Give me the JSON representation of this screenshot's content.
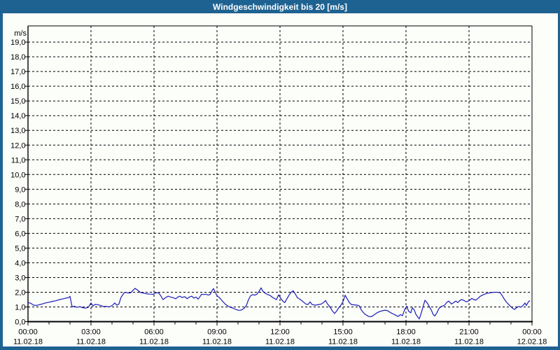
{
  "window": {
    "title": "Windgeschwindigkeit bis 20 [m/s]"
  },
  "colors": {
    "chrome_blue": "#1E6291",
    "plot_background": "#FCFEFA",
    "grid_color": "#000000",
    "line_color": "#1B1BB8",
    "title_text": "#FFFFFF",
    "axis_text": "#000000"
  },
  "chart_data": {
    "type": "line",
    "title": "Windgeschwindigkeit bis 20 [m/s]",
    "ylabel": "m/s",
    "xlabel": "",
    "ylim": [
      0,
      20.1
    ],
    "xlim_hours": [
      0,
      24
    ],
    "grid": "dashed",
    "legend": "none",
    "y_tick_step": 1.0,
    "x_major_tick_hours": 3,
    "x_minor_tick_hours": 1,
    "y_tick_labels": [
      "0,0",
      "1,0",
      "2,0",
      "3,0",
      "4,0",
      "5,0",
      "6,0",
      "7,0",
      "8,0",
      "9,0",
      "10,0",
      "11,0",
      "12,0",
      "13,0",
      "14,0",
      "15,0",
      "16,0",
      "17,0",
      "18,0",
      "19,0"
    ],
    "x_ticks": [
      {
        "time": "00:00",
        "date": "11.02.18"
      },
      {
        "time": "03:00",
        "date": "11.02.18"
      },
      {
        "time": "06:00",
        "date": "11.02.18"
      },
      {
        "time": "09:00",
        "date": "11.02.18"
      },
      {
        "time": "12:00",
        "date": "11.02.18"
      },
      {
        "time": "15:00",
        "date": "11.02.18"
      },
      {
        "time": "18:00",
        "date": "11.02.18"
      },
      {
        "time": "21:00",
        "date": "11.02.18"
      },
      {
        "time": "00:00",
        "date": "12.02.18"
      }
    ],
    "series": [
      {
        "name": "Windgeschwindigkeit",
        "unit": "m/s",
        "points": [
          [
            0,
            1.3
          ],
          [
            0.13,
            1.25
          ],
          [
            0.27,
            1.12
          ],
          [
            0.4,
            1.1
          ],
          [
            0.53,
            1.15
          ],
          [
            0.67,
            1.2
          ],
          [
            0.83,
            1.27
          ],
          [
            1,
            1.32
          ],
          [
            1.17,
            1.38
          ],
          [
            1.33,
            1.42
          ],
          [
            1.5,
            1.5
          ],
          [
            1.67,
            1.55
          ],
          [
            1.8,
            1.6
          ],
          [
            1.93,
            1.63
          ],
          [
            2,
            1.72
          ],
          [
            2.1,
            1
          ],
          [
            2.2,
            1.05
          ],
          [
            2.33,
            0.97
          ],
          [
            2.47,
            1.02
          ],
          [
            2.6,
            0.95
          ],
          [
            2.73,
            0.92
          ],
          [
            2.87,
            0.97
          ],
          [
            3,
            1.27
          ],
          [
            3.1,
            1.07
          ],
          [
            3.2,
            1.17
          ],
          [
            3.33,
            1.15
          ],
          [
            3.47,
            1.1
          ],
          [
            3.6,
            1.02
          ],
          [
            3.73,
            1.04
          ],
          [
            3.87,
            1
          ],
          [
            4.03,
            1.12
          ],
          [
            4.13,
            1.27
          ],
          [
            4.23,
            1.12
          ],
          [
            4.33,
            1.2
          ],
          [
            4.43,
            1.65
          ],
          [
            4.57,
            1.95
          ],
          [
            4.67,
            2
          ],
          [
            4.77,
            1.94
          ],
          [
            4.9,
            1.97
          ],
          [
            5,
            2.13
          ],
          [
            5.1,
            2.26
          ],
          [
            5.23,
            2.13
          ],
          [
            5.33,
            2
          ],
          [
            5.47,
            1.95
          ],
          [
            5.63,
            1.9
          ],
          [
            5.8,
            1.87
          ],
          [
            5.97,
            1.86
          ],
          [
            6.1,
            1.97
          ],
          [
            6.23,
            1.94
          ],
          [
            6.33,
            1.74
          ],
          [
            6.43,
            1.5
          ],
          [
            6.57,
            1.65
          ],
          [
            6.67,
            1.73
          ],
          [
            6.8,
            1.67
          ],
          [
            6.93,
            1.62
          ],
          [
            7.03,
            1.55
          ],
          [
            7.13,
            1.67
          ],
          [
            7.23,
            1.73
          ],
          [
            7.33,
            1.64
          ],
          [
            7.47,
            1.7
          ],
          [
            7.57,
            1.56
          ],
          [
            7.67,
            1.66
          ],
          [
            7.8,
            1.73
          ],
          [
            7.9,
            1.6
          ],
          [
            8,
            1.67
          ],
          [
            8.1,
            1.53
          ],
          [
            8.2,
            1.72
          ],
          [
            8.27,
            1.87
          ],
          [
            8.37,
            1.84
          ],
          [
            8.47,
            1.87
          ],
          [
            8.57,
            1.81
          ],
          [
            8.67,
            1.84
          ],
          [
            8.77,
            2.12
          ],
          [
            8.83,
            2.25
          ],
          [
            8.9,
            2.05
          ],
          [
            9,
            1.76
          ],
          [
            9.1,
            1.65
          ],
          [
            9.2,
            1.5
          ],
          [
            9.3,
            1.33
          ],
          [
            9.4,
            1.18
          ],
          [
            9.5,
            1.08
          ],
          [
            9.6,
            1
          ],
          [
            9.7,
            0.95
          ],
          [
            9.8,
            0.9
          ],
          [
            9.9,
            0.83
          ],
          [
            10,
            0.78
          ],
          [
            10.1,
            0.77
          ],
          [
            10.2,
            0.82
          ],
          [
            10.3,
            0.92
          ],
          [
            10.4,
            1.1
          ],
          [
            10.5,
            1.5
          ],
          [
            10.6,
            1.76
          ],
          [
            10.7,
            1.84
          ],
          [
            10.8,
            1.8
          ],
          [
            10.9,
            1.87
          ],
          [
            11,
            2.05
          ],
          [
            11.1,
            2.3
          ],
          [
            11.17,
            2.1
          ],
          [
            11.27,
            1.95
          ],
          [
            11.4,
            1.85
          ],
          [
            11.53,
            1.78
          ],
          [
            11.67,
            1.62
          ],
          [
            11.83,
            1.5
          ],
          [
            11.93,
            1.82
          ],
          [
            12.03,
            1.6
          ],
          [
            12.13,
            1.4
          ],
          [
            12.23,
            1.3
          ],
          [
            12.33,
            1.56
          ],
          [
            12.43,
            1.8
          ],
          [
            12.53,
            2
          ],
          [
            12.63,
            2.1
          ],
          [
            12.73,
            1.88
          ],
          [
            12.83,
            1.62
          ],
          [
            12.93,
            1.54
          ],
          [
            13.03,
            1.44
          ],
          [
            13.13,
            1.32
          ],
          [
            13.23,
            1.2
          ],
          [
            13.33,
            1.16
          ],
          [
            13.43,
            1.34
          ],
          [
            13.53,
            1.16
          ],
          [
            13.67,
            1.12
          ],
          [
            13.83,
            1.16
          ],
          [
            13.97,
            1.2
          ],
          [
            14.07,
            1.3
          ],
          [
            14.17,
            1.43
          ],
          [
            14.27,
            1.19
          ],
          [
            14.4,
            0.95
          ],
          [
            14.5,
            0.72
          ],
          [
            14.6,
            0.55
          ],
          [
            14.7,
            0.73
          ],
          [
            14.8,
            0.95
          ],
          [
            14.9,
            1.12
          ],
          [
            15,
            1.35
          ],
          [
            15.1,
            1.8
          ],
          [
            15.2,
            1.55
          ],
          [
            15.3,
            1.3
          ],
          [
            15.4,
            1.16
          ],
          [
            15.53,
            1.14
          ],
          [
            15.67,
            1.12
          ],
          [
            15.77,
            1.08
          ],
          [
            15.87,
            0.8
          ],
          [
            15.97,
            0.62
          ],
          [
            16.07,
            0.48
          ],
          [
            16.2,
            0.37
          ],
          [
            16.3,
            0.33
          ],
          [
            16.4,
            0.38
          ],
          [
            16.5,
            0.48
          ],
          [
            16.6,
            0.58
          ],
          [
            16.73,
            0.68
          ],
          [
            16.87,
            0.74
          ],
          [
            17,
            0.78
          ],
          [
            17.13,
            0.74
          ],
          [
            17.23,
            0.64
          ],
          [
            17.33,
            0.56
          ],
          [
            17.43,
            0.5
          ],
          [
            17.53,
            0.42
          ],
          [
            17.63,
            0.35
          ],
          [
            17.73,
            0.48
          ],
          [
            17.83,
            0.4
          ],
          [
            17.93,
            0.8
          ],
          [
            18.03,
            1.05
          ],
          [
            18.13,
            0.7
          ],
          [
            18.23,
            0.6
          ],
          [
            18.3,
            0.95
          ],
          [
            18.4,
            0.78
          ],
          [
            18.47,
            0.5
          ],
          [
            18.57,
            0.3
          ],
          [
            18.63,
            0.18
          ],
          [
            18.73,
            0.6
          ],
          [
            18.83,
            1.1
          ],
          [
            18.9,
            1.45
          ],
          [
            19,
            1.3
          ],
          [
            19.1,
            1.05
          ],
          [
            19.2,
            0.8
          ],
          [
            19.3,
            0.48
          ],
          [
            19.37,
            0.38
          ],
          [
            19.47,
            0.6
          ],
          [
            19.57,
            0.9
          ],
          [
            19.7,
            1.05
          ],
          [
            19.83,
            1.1
          ],
          [
            19.93,
            1.3
          ],
          [
            20.03,
            1.4
          ],
          [
            20.17,
            1.2
          ],
          [
            20.27,
            1.3
          ],
          [
            20.37,
            1.4
          ],
          [
            20.47,
            1.3
          ],
          [
            20.57,
            1.45
          ],
          [
            20.67,
            1.5
          ],
          [
            20.77,
            1.43
          ],
          [
            20.87,
            1.35
          ],
          [
            20.97,
            1.4
          ],
          [
            21.07,
            1.5
          ],
          [
            21.13,
            1.58
          ],
          [
            21.23,
            1.5
          ],
          [
            21.33,
            1.47
          ],
          [
            21.43,
            1.58
          ],
          [
            21.53,
            1.72
          ],
          [
            21.67,
            1.82
          ],
          [
            21.8,
            1.9
          ],
          [
            21.93,
            1.94
          ],
          [
            22.07,
            1.98
          ],
          [
            22.2,
            2
          ],
          [
            22.33,
            2
          ],
          [
            22.47,
            1.98
          ],
          [
            22.57,
            1.8
          ],
          [
            22.67,
            1.55
          ],
          [
            22.77,
            1.35
          ],
          [
            22.87,
            1.2
          ],
          [
            22.97,
            1.05
          ],
          [
            23.07,
            0.92
          ],
          [
            23.17,
            0.83
          ],
          [
            23.27,
            0.95
          ],
          [
            23.37,
            1.03
          ],
          [
            23.47,
            0.98
          ],
          [
            23.57,
            1.1
          ],
          [
            23.67,
            1.27
          ],
          [
            23.73,
            1.1
          ],
          [
            23.83,
            1.35
          ],
          [
            23.9,
            1.43
          ]
        ]
      }
    ]
  }
}
